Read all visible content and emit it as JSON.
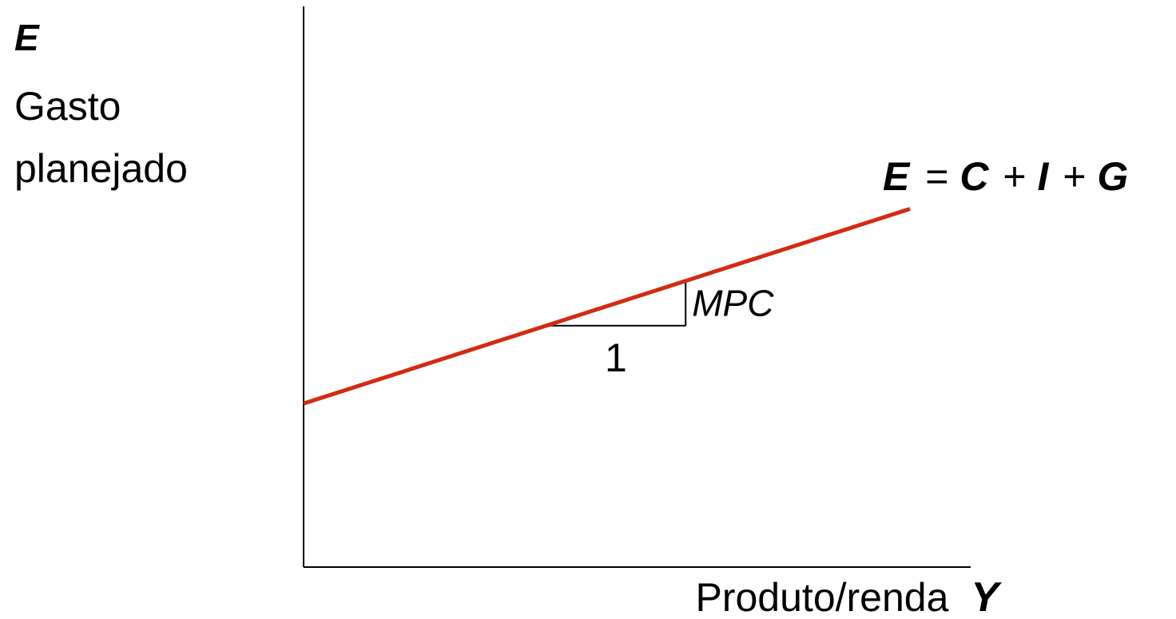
{
  "chart_data": {
    "type": "line",
    "title": "",
    "y_axis": {
      "symbol": "E",
      "label_line1": "Gasto",
      "label_line2": "planejado"
    },
    "x_axis": {
      "label": "Produto/renda",
      "symbol": "Y"
    },
    "series": [
      {
        "name": "E = C + I + G",
        "x": [
          0,
          10
        ],
        "y": [
          2.1,
          4.6
        ]
      }
    ],
    "slope_triangle": {
      "x_start": 4.0,
      "x_end": 6.3,
      "run_label": "1",
      "rise_label": "MPC"
    },
    "equation": {
      "lhs": "E",
      "eq": "=",
      "c": "C",
      "plus1": "+",
      "i": "I",
      "plus2": "+",
      "g": "G"
    },
    "xlim": [
      0,
      11
    ],
    "ylim": [
      0,
      7.2
    ],
    "grid": false,
    "line_color": "#d42a12"
  }
}
